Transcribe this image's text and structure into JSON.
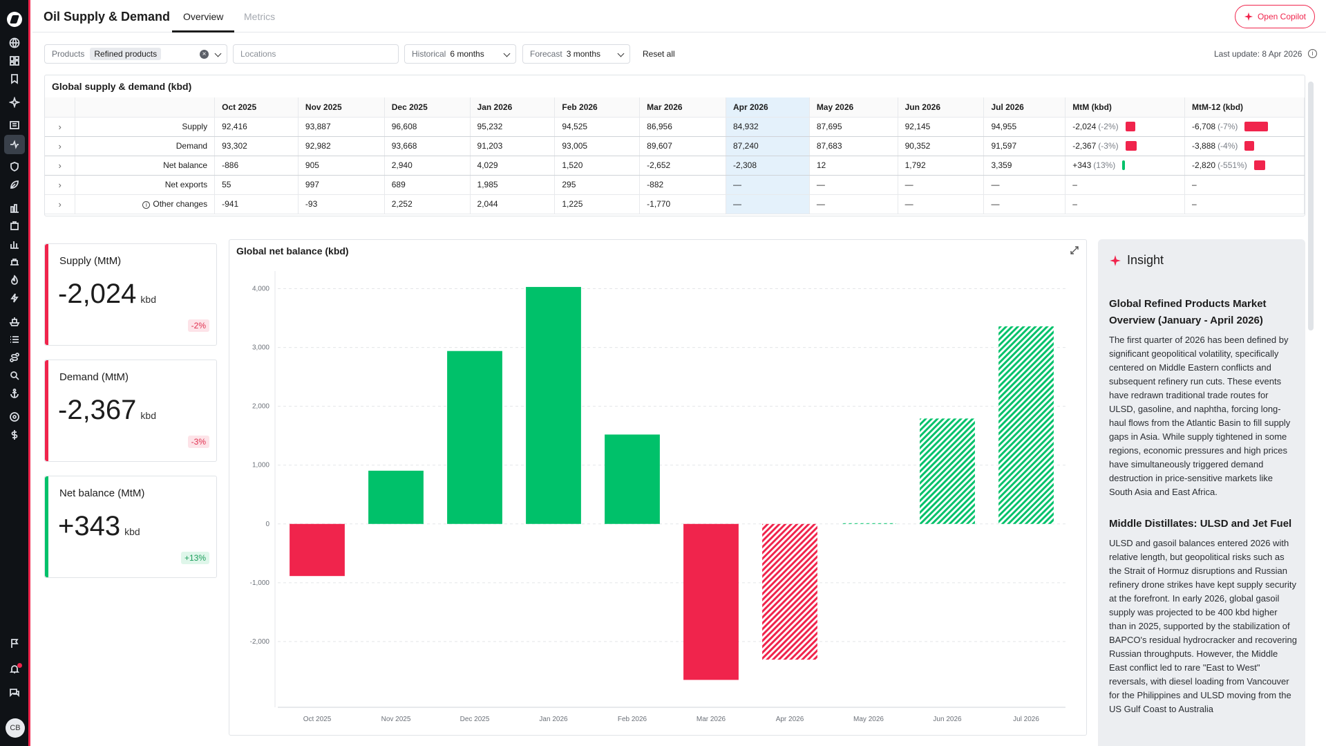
{
  "header": {
    "title": "Oil Supply & Demand",
    "tabs": [
      "Overview",
      "Metrics"
    ],
    "copilot_label": "Open Copilot"
  },
  "filters": {
    "products_label": "Products",
    "products_value": "Refined products",
    "locations_placeholder": "Locations",
    "historical_label": "Historical",
    "historical_value": "6 months",
    "forecast_label": "Forecast",
    "forecast_value": "3 months",
    "reset_label": "Reset all",
    "last_update": "Last update: 8 Apr 2026"
  },
  "table": {
    "title": "Global supply & demand (kbd)",
    "columns": [
      "Oct 2025",
      "Nov 2025",
      "Dec 2025",
      "Jan 2026",
      "Feb 2026",
      "Mar 2026",
      "Apr 2026",
      "May 2026",
      "Jun 2026",
      "Jul 2026",
      "MtM (kbd)",
      "MtM-12 (kbd)"
    ],
    "rows": [
      {
        "label": "Supply",
        "values": [
          "92,416",
          "93,887",
          "96,608",
          "95,232",
          "94,525",
          "86,956",
          "84,932",
          "87,695",
          "92,145",
          "94,955"
        ],
        "mtm": "-2,024",
        "mtm_pct": "(-2%)",
        "mtm_bar": "red",
        "mtm12": "-6,708",
        "mtm12_pct": "(-7%)",
        "mtm12_bar": "red"
      },
      {
        "label": "Demand",
        "values": [
          "93,302",
          "92,982",
          "93,668",
          "91,203",
          "93,005",
          "89,607",
          "87,240",
          "87,683",
          "90,352",
          "91,597"
        ],
        "mtm": "-2,367",
        "mtm_pct": "(-3%)",
        "mtm_bar": "red",
        "mtm12": "-3,888",
        "mtm12_pct": "(-4%)",
        "mtm12_bar": "red"
      },
      {
        "label": "Net balance",
        "values": [
          "-886",
          "905",
          "2,940",
          "4,029",
          "1,520",
          "-2,652",
          "-2,308",
          "12",
          "1,792",
          "3,359"
        ],
        "mtm": "+343",
        "mtm_pct": "(13%)",
        "mtm_bar": "green",
        "mtm12": "-2,820",
        "mtm12_pct": "(-551%)",
        "mtm12_bar": "red"
      },
      {
        "label": "Net exports",
        "values": [
          "55",
          "997",
          "689",
          "1,985",
          "295",
          "-882",
          "—",
          "—",
          "—",
          "—"
        ],
        "mtm": "–",
        "mtm_pct": "",
        "mtm_bar": "",
        "mtm12": "–",
        "mtm12_pct": "",
        "mtm12_bar": ""
      },
      {
        "label": "Other changes",
        "values": [
          "-941",
          "-93",
          "2,252",
          "2,044",
          "1,225",
          "-1,770",
          "—",
          "—",
          "—",
          "—"
        ],
        "mtm": "–",
        "mtm_pct": "",
        "mtm_bar": "",
        "mtm12": "–",
        "mtm12_pct": "",
        "mtm12_bar": ""
      }
    ]
  },
  "kpis": [
    {
      "title": "Supply (MtM)",
      "value": "-2,024",
      "unit": "kbd",
      "badge": "-2%",
      "tone": "red"
    },
    {
      "title": "Demand (MtM)",
      "value": "-2,367",
      "unit": "kbd",
      "badge": "-3%",
      "tone": "red"
    },
    {
      "title": "Net balance (MtM)",
      "value": "+343",
      "unit": "kbd",
      "badge": "+13%",
      "tone": "green"
    }
  ],
  "chart_data": {
    "type": "bar",
    "title": "Global net balance (kbd)",
    "categories": [
      "Oct 2025",
      "Nov 2025",
      "Dec 2025",
      "Jan 2026",
      "Feb 2026",
      "Mar 2026",
      "Apr 2026",
      "May 2026",
      "Jun 2026",
      "Jul 2026"
    ],
    "values": [
      -886,
      905,
      2940,
      4029,
      1520,
      -2652,
      -2308,
      12,
      1792,
      3359
    ],
    "forecast": [
      false,
      false,
      false,
      false,
      false,
      false,
      true,
      true,
      true,
      true
    ],
    "ylim": [
      -3000,
      4300
    ],
    "yticks": [
      -2000,
      -1000,
      0,
      1000,
      2000,
      3000,
      4000
    ],
    "ytick_labels": [
      "-2,000",
      "-1,000",
      "0",
      "1,000",
      "2,000",
      "3,000",
      "4,000"
    ],
    "positive_color": "#00c16a",
    "negative_color": "#f0244c",
    "grid": true,
    "legend": "none"
  },
  "insight": {
    "title": "Insight",
    "sections": [
      {
        "heading": "Global Refined Products Market Overview (January - April 2026)",
        "text": "The first quarter of 2026 has been defined by significant geopolitical volatility, specifically centered on Middle Eastern conflicts and subsequent refinery run cuts. These events have redrawn traditional trade routes for ULSD, gasoline, and naphtha, forcing long-haul flows from the Atlantic Basin to fill supply gaps in Asia. While supply tightened in some regions, economic pressures and high prices have simultaneously triggered demand destruction in price-sensitive markets like South Asia and East Africa."
      },
      {
        "heading": "Middle Distillates: ULSD and Jet Fuel",
        "text": "ULSD and gasoil balances entered 2026 with relative length, but geopolitical risks such as the Strait of Hormuz disruptions and Russian refinery drone strikes have kept supply security at the forefront. In early 2026, global gasoil supply was projected to be 400 kbd higher than in 2025, supported by the stabilization of BAPCO's residual hydrocracker and recovering Russian throughputs. However, the Middle East conflict led to rare \"East to West\" reversals, with diesel loading from Vancouver for the Philippines and ULSD moving from the US Gulf Coast to Australia"
      }
    ]
  },
  "user": {
    "initials": "CB"
  }
}
